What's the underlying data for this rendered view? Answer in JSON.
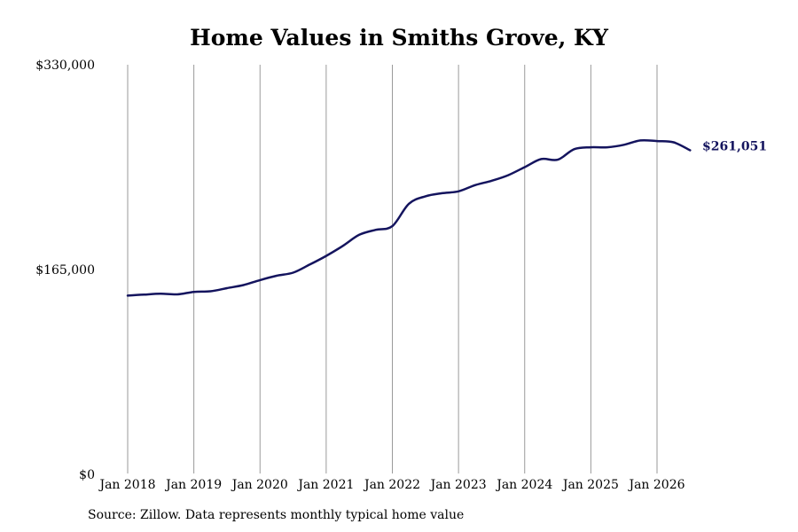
{
  "title": "Home Values in Smiths Grove, KY",
  "source": "Source: Zillow. Data represents monthly typical home value",
  "chart_data": {
    "type": "line",
    "title": "Home Values in Smiths Grove, KY",
    "xlabel": "",
    "ylabel": "",
    "ylim": [
      0,
      330000
    ],
    "xlim": [
      "2018-01",
      "2026-07"
    ],
    "yticks": [
      {
        "value": 0,
        "label": "$0"
      },
      {
        "value": 165000,
        "label": "$165,000"
      },
      {
        "value": 330000,
        "label": "$330,000"
      }
    ],
    "xticks": [
      {
        "value": "2018-01",
        "label": "Jan 2018"
      },
      {
        "value": "2019-01",
        "label": "Jan 2019"
      },
      {
        "value": "2020-01",
        "label": "Jan 2020"
      },
      {
        "value": "2021-01",
        "label": "Jan 2021"
      },
      {
        "value": "2022-01",
        "label": "Jan 2022"
      },
      {
        "value": "2023-01",
        "label": "Jan 2023"
      },
      {
        "value": "2024-01",
        "label": "Jan 2024"
      },
      {
        "value": "2025-01",
        "label": "Jan 2025"
      },
      {
        "value": "2026-01",
        "label": "Jan 2026"
      }
    ],
    "grid": "vertical",
    "line_color": "#14145e",
    "end_label": "$261,051",
    "series": [
      {
        "x": [
          "2018-01",
          "2018-04",
          "2018-07",
          "2018-10",
          "2019-01",
          "2019-04",
          "2019-07",
          "2019-10",
          "2020-01",
          "2020-04",
          "2020-07",
          "2020-10",
          "2021-01",
          "2021-04",
          "2021-07",
          "2021-10",
          "2022-01",
          "2022-04",
          "2022-07",
          "2022-10",
          "2023-01",
          "2023-04",
          "2023-07",
          "2023-10",
          "2024-01",
          "2024-04",
          "2024-07",
          "2024-10",
          "2025-01",
          "2025-04",
          "2025-07",
          "2025-10",
          "2026-01",
          "2026-04",
          "2026-07"
        ],
        "values": [
          144000,
          144800,
          145500,
          145000,
          147000,
          147500,
          150000,
          152500,
          156500,
          160000,
          162500,
          169000,
          176000,
          184000,
          193000,
          197000,
          200000,
          218000,
          224000,
          226500,
          228000,
          233000,
          236500,
          241000,
          247500,
          254000,
          253500,
          262000,
          263500,
          263500,
          265500,
          269000,
          268500,
          267500,
          261051
        ]
      }
    ]
  }
}
